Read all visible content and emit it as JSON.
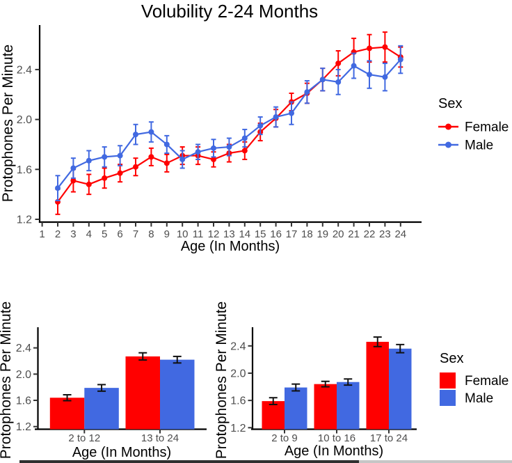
{
  "figure": {
    "background": "#ffffff",
    "colors": {
      "female": "#ff0000",
      "male": "#4169e1",
      "tick_label": "#4d4d4d",
      "axis": "#000000",
      "error_bar_dark": "#111111"
    }
  },
  "chart_data": [
    {
      "id": "volubility-by-month",
      "type": "line",
      "title": "Volubility 2-24 Months",
      "xlabel": "Age (In Months)",
      "ylabel": "Protophones Per Minute",
      "legend_title": "Sex",
      "legend_position": "right",
      "grid": false,
      "xticks": [
        1,
        2,
        3,
        4,
        5,
        6,
        7,
        8,
        9,
        10,
        11,
        12,
        13,
        14,
        15,
        16,
        17,
        18,
        19,
        20,
        21,
        22,
        23,
        24
      ],
      "yticks": [
        1.2,
        1.6,
        2.0,
        2.4
      ],
      "xlim": [
        1,
        24
      ],
      "ylim": [
        1.2,
        2.75
      ],
      "x": [
        2,
        3,
        4,
        5,
        6,
        7,
        8,
        9,
        10,
        11,
        12,
        13,
        14,
        15,
        16,
        17,
        18,
        19,
        20,
        21,
        22,
        23,
        24
      ],
      "series": [
        {
          "name": "Female",
          "color": "#ff0000",
          "values": [
            1.34,
            1.51,
            1.48,
            1.53,
            1.57,
            1.62,
            1.7,
            1.65,
            1.71,
            1.71,
            1.68,
            1.73,
            1.75,
            1.9,
            2.01,
            2.14,
            2.21,
            2.32,
            2.45,
            2.54,
            2.57,
            2.58,
            2.5
          ],
          "err": [
            0.1,
            0.09,
            0.08,
            0.08,
            0.07,
            0.07,
            0.07,
            0.07,
            0.07,
            0.07,
            0.06,
            0.07,
            0.07,
            0.07,
            0.07,
            0.07,
            0.08,
            0.09,
            0.1,
            0.11,
            0.11,
            0.12,
            0.08
          ]
        },
        {
          "name": "Male",
          "color": "#4169e1",
          "values": [
            1.45,
            1.61,
            1.67,
            1.7,
            1.71,
            1.88,
            1.9,
            1.8,
            1.68,
            1.74,
            1.77,
            1.78,
            1.85,
            1.95,
            2.02,
            2.05,
            2.22,
            2.32,
            2.3,
            2.43,
            2.36,
            2.34,
            2.48
          ],
          "err": [
            0.1,
            0.08,
            0.08,
            0.08,
            0.08,
            0.08,
            0.08,
            0.07,
            0.07,
            0.06,
            0.07,
            0.07,
            0.07,
            0.07,
            0.08,
            0.09,
            0.09,
            0.09,
            0.1,
            0.1,
            0.11,
            0.11,
            0.11
          ]
        }
      ]
    },
    {
      "id": "volubility-2-age-groups",
      "type": "bar",
      "xlabel": "Age (In Months)",
      "ylabel": "Protophones Per Minute",
      "grid": false,
      "categories": [
        "2 to 12",
        "13 to 24"
      ],
      "yticks": [
        1.2,
        1.6,
        2.0,
        2.4
      ],
      "ylim": [
        1.2,
        2.6
      ],
      "series": [
        {
          "name": "Female",
          "color": "#ff0000",
          "values": [
            1.64,
            2.27
          ],
          "err": [
            0.045,
            0.055
          ]
        },
        {
          "name": "Male",
          "color": "#4169e1",
          "values": [
            1.79,
            2.22
          ],
          "err": [
            0.05,
            0.05
          ]
        }
      ]
    },
    {
      "id": "volubility-3-age-groups",
      "type": "bar",
      "xlabel": "Age (In Months)",
      "ylabel": "Protophones Per Minute",
      "legend_title": "Sex",
      "legend_position": "right",
      "grid": false,
      "categories": [
        "2 to 9",
        "10 to 16",
        "17 to 24"
      ],
      "yticks": [
        1.2,
        1.6,
        2.0,
        2.4
      ],
      "ylim": [
        1.2,
        2.6
      ],
      "series": [
        {
          "name": "Female",
          "color": "#ff0000",
          "values": [
            1.59,
            1.84,
            2.46
          ],
          "err": [
            0.05,
            0.04,
            0.07
          ]
        },
        {
          "name": "Male",
          "color": "#4169e1",
          "values": [
            1.79,
            1.87,
            2.36
          ],
          "err": [
            0.05,
            0.045,
            0.06
          ]
        }
      ]
    }
  ]
}
